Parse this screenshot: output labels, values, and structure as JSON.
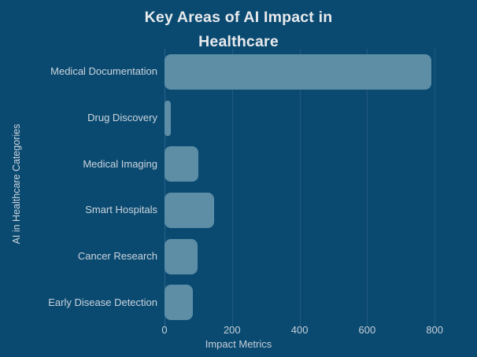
{
  "title": {
    "line1": "Key Areas of AI Impact in",
    "line2": "Healthcare"
  },
  "chart_data": {
    "type": "bar",
    "orientation": "horizontal",
    "title": "Key Areas of AI Impact in Healthcare",
    "xlabel": "Impact Metrics",
    "ylabel": "AI in Healthcare Categories",
    "categories": [
      "Medical Documentation",
      "Drug Discovery",
      "Medical Imaging",
      "Smart Hospitals",
      "Cancer Research",
      "Early Disease Detection"
    ],
    "values": [
      790,
      18,
      100,
      146,
      98,
      85
    ],
    "xticks": [
      0,
      200,
      400,
      600,
      800
    ],
    "xlim": [
      0,
      905
    ],
    "grid": "vertical",
    "legend": "none",
    "bar_corner_radius": 8
  },
  "colors": {
    "background": "#0a4a71",
    "bar": "#5e8ea6",
    "gridline": "#22587e",
    "zero_axis": "#2c628a",
    "title_text": "#e8eaec",
    "label_text": "#ccd4dc",
    "tick_text": "#c6cfd8"
  }
}
